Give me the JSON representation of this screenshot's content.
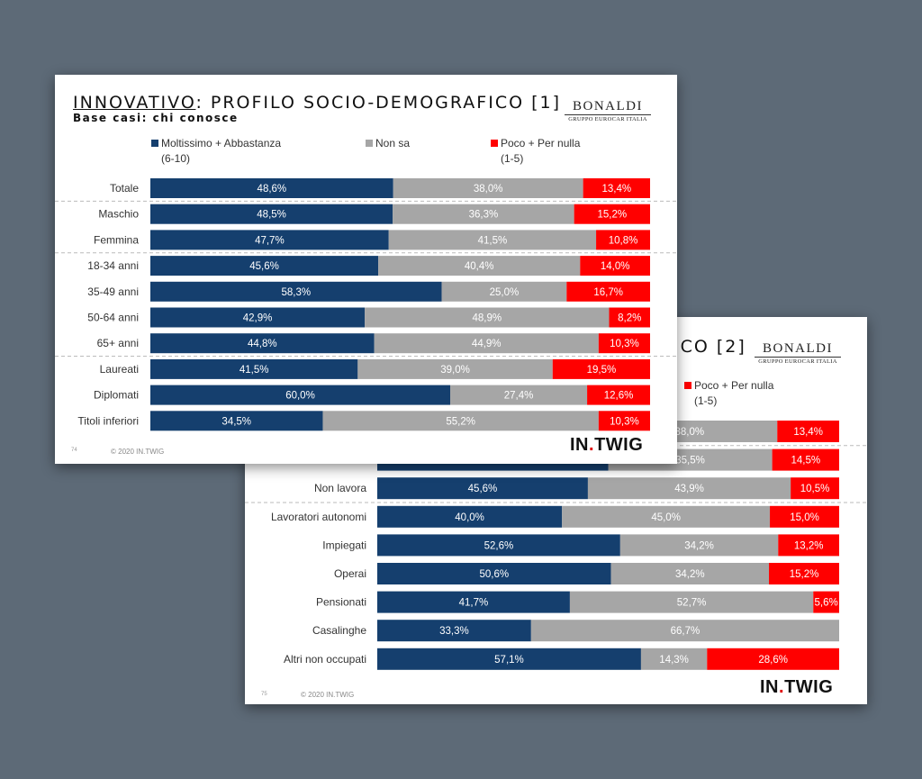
{
  "colors": {
    "positive": "#153f6e",
    "neutral": "#a6a6a6",
    "negative": "#ff0000"
  },
  "legend": {
    "positive": {
      "line1": "Moltissimo + Abbastanza",
      "line2": "(6-10)"
    },
    "neutral": {
      "line1": "Non sa"
    },
    "negative": {
      "line1": "Poco + Per nulla",
      "line2": "(1-5)"
    }
  },
  "logo": {
    "name": "BONALDI",
    "subtitle": "GRUPPO EUROCAR ITALIA"
  },
  "slide1": {
    "title_underlined": "INNOVATIVO",
    "title_rest": ": PROFILO SOCIO-DEMOGRAFICO [1]",
    "subtitle": "Base casi: chi conosce",
    "page_number": "74",
    "copyright": "© 2020 IN.TWIG",
    "brand": {
      "part1": "IN",
      "dot": ".",
      "part2": "TWIG"
    }
  },
  "slide2": {
    "title_visible": "ICO [2]",
    "page_number": "75",
    "copyright": "© 2020 IN.TWIG",
    "brand": {
      "part1": "IN",
      "dot": ".",
      "part2": "TWIG"
    }
  },
  "chart_data": [
    {
      "type": "bar",
      "orientation": "horizontal-stacked-100",
      "categories": [
        "Totale",
        "Maschio",
        "Femmina",
        "18-34 anni",
        "35-49 anni",
        "50-64 anni",
        "65+ anni",
        "Laureati",
        "Diplomati",
        "Titoli inferiori"
      ],
      "series": [
        {
          "name": "Moltissimo + Abbastanza (6-10)",
          "values": [
            48.6,
            48.5,
            47.7,
            45.6,
            58.3,
            42.9,
            44.8,
            41.5,
            60.0,
            34.5
          ],
          "labels": [
            "48,6%",
            "48,5%",
            "47,7%",
            "45,6%",
            "58,3%",
            "42,9%",
            "44,8%",
            "41,5%",
            "60,0%",
            "34,5%"
          ]
        },
        {
          "name": "Non sa",
          "values": [
            38.0,
            36.3,
            41.5,
            40.4,
            25.0,
            48.9,
            44.9,
            39.0,
            27.4,
            55.2
          ],
          "labels": [
            "38,0%",
            "36,3%",
            "41,5%",
            "40,4%",
            "25,0%",
            "48,9%",
            "44,9%",
            "39,0%",
            "27,4%",
            "55,2%"
          ]
        },
        {
          "name": "Poco + Per nulla (1-5)",
          "values": [
            13.4,
            15.2,
            10.8,
            14.0,
            16.7,
            8.2,
            10.3,
            19.5,
            12.6,
            10.3
          ],
          "labels": [
            "13,4%",
            "15,2%",
            "10,8%",
            "14,0%",
            "16,7%",
            "8,2%",
            "10,3%",
            "19,5%",
            "12,6%",
            "10,3%"
          ]
        }
      ],
      "group_separators_after": [
        0,
        2,
        6
      ],
      "xlim": [
        0,
        100
      ]
    },
    {
      "type": "bar",
      "orientation": "horizontal-stacked-100",
      "categories": [
        "",
        "",
        "Non lavora",
        "Lavoratori autonomi",
        "Impiegati",
        "Operai",
        "Pensionati",
        "Casalinghe",
        "Altri non occupati"
      ],
      "series": [
        {
          "name": "Moltissimo + Abbastanza (6-10)",
          "values": [
            48.6,
            50.0,
            45.6,
            40.0,
            52.6,
            50.6,
            41.7,
            33.3,
            57.1
          ],
          "labels": [
            "",
            "",
            "45,6%",
            "40,0%",
            "52,6%",
            "50,6%",
            "41,7%",
            "33,3%",
            "57,1%"
          ]
        },
        {
          "name": "Non sa",
          "values": [
            38.0,
            35.5,
            43.9,
            45.0,
            34.2,
            34.2,
            52.7,
            66.7,
            14.3
          ],
          "labels": [
            "38,0%",
            "35,5%",
            "43,9%",
            "45,0%",
            "34,2%",
            "34,2%",
            "52,7%",
            "66,7%",
            "14,3%"
          ]
        },
        {
          "name": "Poco + Per nulla (1-5)",
          "values": [
            13.4,
            14.5,
            10.5,
            15.0,
            13.2,
            15.2,
            5.6,
            0,
            28.6
          ],
          "labels": [
            "13,4%",
            "14,5%",
            "10,5%",
            "15,0%",
            "13,2%",
            "15,2%",
            "5,6%",
            "",
            "28,6%"
          ]
        }
      ],
      "group_separators_after": [
        0,
        2
      ],
      "xlim": [
        0,
        100
      ]
    }
  ]
}
